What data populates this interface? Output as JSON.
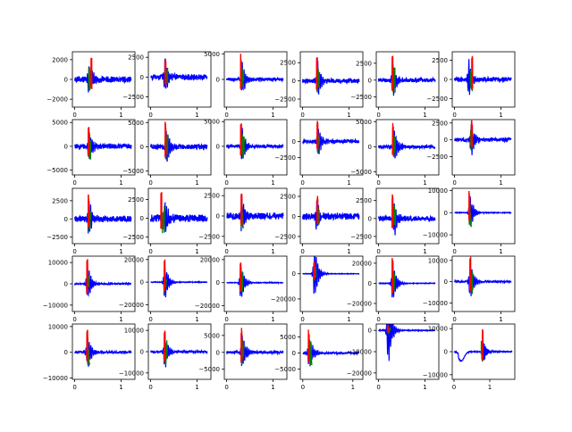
{
  "chart_data": {
    "type": "line",
    "layout": {
      "rows": 5,
      "cols": 6
    },
    "colors": {
      "sensor": "#0000ff",
      "onset": "#ff0000",
      "segment": "#008000",
      "axes": "#000000",
      "background": "#ffffff"
    },
    "panels": [
      {
        "xlim": [
          -0.05,
          1.3
        ],
        "ylim": [
          -2800,
          2800
        ],
        "yticks": [
          -2000,
          0,
          2000
        ],
        "xticks": [
          0,
          1
        ],
        "peak": 0.3,
        "amp": 2400,
        "noise": 300,
        "mark_x": 0.36,
        "mark_amp": 2600,
        "green_x": 0.32,
        "green_amp": 1400
      },
      {
        "xlim": [
          -0.05,
          1.3
        ],
        "ylim": [
          -3800,
          3200
        ],
        "yticks": [
          -2500,
          0,
          2500
        ],
        "xticks": [
          0,
          1
        ],
        "peak": 0.3,
        "amp": 2800,
        "noise": 350,
        "mark_x": 0.32,
        "mark_amp": 2600,
        "green_x": 0.34,
        "green_amp": 1200
      },
      {
        "xlim": [
          -0.05,
          1.3
        ],
        "ylim": [
          -5400,
          5400
        ],
        "yticks": [
          0,
          5000
        ],
        "xticks": [
          0,
          1
        ],
        "peak": 0.33,
        "amp": 4200,
        "noise": 300,
        "mark_x": 0.31,
        "mark_amp": 5000,
        "green_x": 0.34,
        "green_amp": 3000
      },
      {
        "xlim": [
          -0.05,
          1.3
        ],
        "ylim": [
          -3600,
          4000
        ],
        "yticks": [
          -2500,
          0,
          2500
        ],
        "xticks": [
          0,
          1
        ],
        "peak": 0.32,
        "amp": 3000,
        "noise": 300,
        "mark_x": 0.31,
        "mark_amp": 3400,
        "green_x": 0.33,
        "green_amp": 2000
      },
      {
        "xlim": [
          -0.05,
          1.3
        ],
        "ylim": [
          -4000,
          4200
        ],
        "yticks": [
          -2500,
          0,
          2500
        ],
        "xticks": [
          0,
          1
        ],
        "peak": 0.3,
        "amp": 3600,
        "noise": 300,
        "mark_x": 0.3,
        "mark_amp": 4000,
        "green_x": 0.33,
        "green_amp": 2200
      },
      {
        "xlim": [
          -0.05,
          1.3
        ],
        "ylim": [
          -3600,
          3600
        ],
        "yticks": [
          -2500,
          0,
          2500
        ],
        "xticks": [
          0,
          1
        ],
        "peak": 0.3,
        "amp": 3000,
        "noise": 300,
        "mark_x": 0.38,
        "mark_amp": 3400,
        "green_x": 0.36,
        "green_amp": 1600
      },
      {
        "xlim": [
          -0.05,
          1.3
        ],
        "ylim": [
          -6000,
          5600
        ],
        "yticks": [
          -5000,
          0,
          5000
        ],
        "xticks": [
          0,
          1
        ],
        "peak": 0.3,
        "amp": 5000,
        "noise": 500,
        "mark_x": 0.3,
        "mark_amp": 5200,
        "green_x": 0.32,
        "green_amp": 3000
      },
      {
        "xlim": [
          -0.05,
          1.3
        ],
        "ylim": [
          -5800,
          5600
        ],
        "yticks": [
          -5000,
          0,
          5000
        ],
        "xticks": [
          0,
          1
        ],
        "peak": 0.33,
        "amp": 5000,
        "noise": 500,
        "mark_x": 0.32,
        "mark_amp": 5200,
        "green_x": 0.34,
        "green_amp": 2600
      },
      {
        "xlim": [
          -0.05,
          1.3
        ],
        "ylim": [
          -5800,
          5400
        ],
        "yticks": [
          0,
          5000
        ],
        "xticks": [
          0,
          1
        ],
        "peak": 0.33,
        "amp": 5000,
        "noise": 300,
        "mark_x": 0.31,
        "mark_amp": 4800,
        "green_x": 0.35,
        "green_amp": 2600
      },
      {
        "xlim": [
          -0.05,
          1.3
        ],
        "ylim": [
          -5200,
          3400
        ],
        "yticks": [
          -2500,
          0
        ],
        "xticks": [
          0,
          1
        ],
        "peak": 0.33,
        "amp": 3200,
        "noise": 300,
        "mark_x": 0.32,
        "mark_amp": 3200,
        "green_x": 0.34,
        "green_amp": 2000
      },
      {
        "xlim": [
          -0.05,
          1.3
        ],
        "ylim": [
          -5600,
          5400
        ],
        "yticks": [
          -5000,
          0,
          5000
        ],
        "xticks": [
          0,
          1
        ],
        "peak": 0.33,
        "amp": 4600,
        "noise": 300,
        "mark_x": 0.31,
        "mark_amp": 4800,
        "green_x": 0.33,
        "green_amp": 2400
      },
      {
        "xlim": [
          -0.05,
          1.3
        ],
        "ylim": [
          -5200,
          3000
        ],
        "yticks": [
          -2500,
          0,
          2500
        ],
        "xticks": [
          0,
          1
        ],
        "peak": 0.35,
        "amp": 3200,
        "noise": 300,
        "mark_x": 0.37,
        "mark_amp": 3000,
        "green_x": 0.36,
        "green_amp": 2200
      },
      {
        "xlim": [
          -0.05,
          1.3
        ],
        "ylim": [
          -3400,
          4200
        ],
        "yticks": [
          -2500,
          0,
          2500
        ],
        "xticks": [
          0,
          1
        ],
        "peak": 0.3,
        "amp": 3200,
        "noise": 400,
        "mark_x": 0.3,
        "mark_amp": 3400,
        "green_x": 0.32,
        "green_amp": 1800
      },
      {
        "xlim": [
          -0.05,
          1.3
        ],
        "ylim": [
          -3400,
          4000
        ],
        "yticks": [
          -2500,
          0,
          2500
        ],
        "xticks": [
          0,
          1
        ],
        "peak": 0.3,
        "amp": 3000,
        "noise": 500,
        "mark_x": 0.23,
        "mark_amp": 3600,
        "green_x": 0.27,
        "green_amp": 2000
      },
      {
        "xlim": [
          -0.05,
          1.3
        ],
        "ylim": [
          -3400,
          3400
        ],
        "yticks": [
          -2500,
          0,
          2500
        ],
        "xticks": [
          0,
          1
        ],
        "peak": 0.32,
        "amp": 2800,
        "noise": 400,
        "mark_x": 0.32,
        "mark_amp": 3000,
        "green_x": 0.33,
        "green_amp": 1600
      },
      {
        "xlim": [
          -0.05,
          1.3
        ],
        "ylim": [
          -3400,
          3500
        ],
        "yticks": [
          -2500,
          0,
          2500
        ],
        "xticks": [
          0,
          1
        ],
        "peak": 0.3,
        "amp": 2600,
        "noise": 400,
        "mark_x": 0.32,
        "mark_amp": 2600,
        "green_x": 0.33,
        "green_amp": 1400
      },
      {
        "xlim": [
          -0.05,
          1.3
        ],
        "ylim": [
          -3500,
          4200
        ],
        "yticks": [
          -2500,
          0,
          2500
        ],
        "xticks": [
          0,
          1
        ],
        "peak": 0.33,
        "amp": 3400,
        "noise": 350,
        "mark_x": 0.3,
        "mark_amp": 3800,
        "green_x": 0.34,
        "green_amp": 2000
      },
      {
        "xlim": [
          -0.05,
          1.3
        ],
        "ylim": [
          -14000,
          11000
        ],
        "yticks": [
          -10000,
          0,
          10000
        ],
        "xticks": [
          0,
          1
        ],
        "peak": 0.33,
        "amp": 10000,
        "noise": 150,
        "mark_x": 0.32,
        "mark_amp": 10000,
        "green_x": 0.33,
        "green_amp": 7000
      },
      {
        "xlim": [
          -0.05,
          1.3
        ],
        "ylim": [
          -13000,
          13000
        ],
        "yticks": [
          -10000,
          0,
          10000
        ],
        "xticks": [
          0,
          1
        ],
        "peak": 0.27,
        "amp": 12000,
        "noise": 300,
        "mark_x": 0.27,
        "mark_amp": 12000,
        "green_x": 0.28,
        "green_amp": 5000
      },
      {
        "xlim": [
          -0.05,
          1.3
        ],
        "ylim": [
          -26000,
          23000
        ],
        "yticks": [
          -20000,
          0,
          20000
        ],
        "xticks": [
          0,
          1
        ],
        "peak": 0.3,
        "amp": 22000,
        "noise": 300,
        "mark_x": 0.3,
        "mark_amp": 22000,
        "green_x": 0.32,
        "green_amp": 9000
      },
      {
        "xlim": [
          -0.05,
          1.3
        ],
        "ylim": [
          -25000,
          23000
        ],
        "yticks": [
          -20000,
          0,
          20000
        ],
        "xticks": [
          0,
          1
        ],
        "peak": 0.3,
        "amp": 21000,
        "noise": 300,
        "mark_x": 0.3,
        "mark_amp": 20000,
        "green_x": 0.32,
        "green_amp": 10000
      },
      {
        "xlim": [
          -0.05,
          1.3
        ],
        "ylim": [
          -30000,
          14000
        ],
        "yticks": [
          -20000,
          0
        ],
        "xticks": [
          0,
          1
        ],
        "peak": 0.25,
        "amp": 28000,
        "noise": 200,
        "mark_x": 0.25,
        "mark_amp": 12000,
        "green_x": 0.26,
        "green_amp": 6000
      },
      {
        "xlim": [
          -0.05,
          1.3
        ],
        "ylim": [
          -28000,
          27000
        ],
        "yticks": [
          -20000,
          0,
          20000
        ],
        "xticks": [
          0,
          1
        ],
        "peak": 0.3,
        "amp": 26000,
        "noise": 300,
        "mark_x": 0.3,
        "mark_amp": 26000,
        "green_x": 0.32,
        "green_amp": 12000
      },
      {
        "xlim": [
          -0.05,
          1.3
        ],
        "ylim": [
          -14000,
          12000
        ],
        "yticks": [
          -10000,
          0,
          10000
        ],
        "xticks": [
          0,
          1
        ],
        "peak": 0.33,
        "amp": 12000,
        "noise": 400,
        "mark_x": 0.34,
        "mark_amp": 12000,
        "green_x": 0.36,
        "green_amp": 6000
      },
      {
        "xlim": [
          -0.05,
          1.3
        ],
        "ylim": [
          -10500,
          11000
        ],
        "yticks": [
          -10000,
          0,
          10000
        ],
        "xticks": [
          0,
          1
        ],
        "peak": 0.27,
        "amp": 9000,
        "noise": 400,
        "mark_x": 0.27,
        "mark_amp": 9500,
        "green_x": 0.29,
        "green_amp": 6000
      },
      {
        "xlim": [
          -0.05,
          1.3
        ],
        "ylim": [
          -13000,
          13000
        ],
        "yticks": [
          -10000,
          0,
          10000
        ],
        "xticks": [
          0,
          1
        ],
        "peak": 0.3,
        "amp": 11000,
        "noise": 500,
        "mark_x": 0.3,
        "mark_amp": 11500,
        "green_x": 0.33,
        "green_amp": 6000
      },
      {
        "xlim": [
          -0.05,
          1.3
        ],
        "ylim": [
          -8000,
          8400
        ],
        "yticks": [
          -5000,
          0,
          5000
        ],
        "xticks": [
          0,
          1
        ],
        "peak": 0.33,
        "amp": 7500,
        "noise": 400,
        "mark_x": 0.32,
        "mark_amp": 7800,
        "green_x": 0.34,
        "green_amp": 4000
      },
      {
        "xlim": [
          -0.05,
          1.2
        ],
        "ylim": [
          -8200,
          9000
        ],
        "yticks": [
          -5000,
          0,
          5000
        ],
        "xticks": [
          0,
          1
        ],
        "peak": 0.12,
        "amp": 7500,
        "noise": 300,
        "mark_x": 0.12,
        "mark_amp": 7500,
        "green_x": 0.15,
        "green_amp": 4500
      },
      {
        "xlim": [
          -0.05,
          1.3
        ],
        "ylim": [
          -23000,
          3000
        ],
        "yticks": [
          -20000,
          -10000,
          0
        ],
        "xticks": [
          0,
          1
        ],
        "peak": 0.2,
        "amp": 21000,
        "noise": 200,
        "mark_x": 0.2,
        "mark_amp": 2500,
        "green_x": 0.22,
        "green_amp": 2000
      },
      {
        "xlim": [
          -0.05,
          1.7
        ],
        "ylim": [
          -12000,
          12000
        ],
        "yticks": [
          -10000,
          0,
          10000
        ],
        "xticks": [
          0,
          1
        ],
        "peak": 0.8,
        "amp": 9500,
        "noise": 200,
        "mark_x": 0.8,
        "mark_amp": 10000,
        "green_x": 0.78,
        "green_amp": 5000
      }
    ]
  }
}
